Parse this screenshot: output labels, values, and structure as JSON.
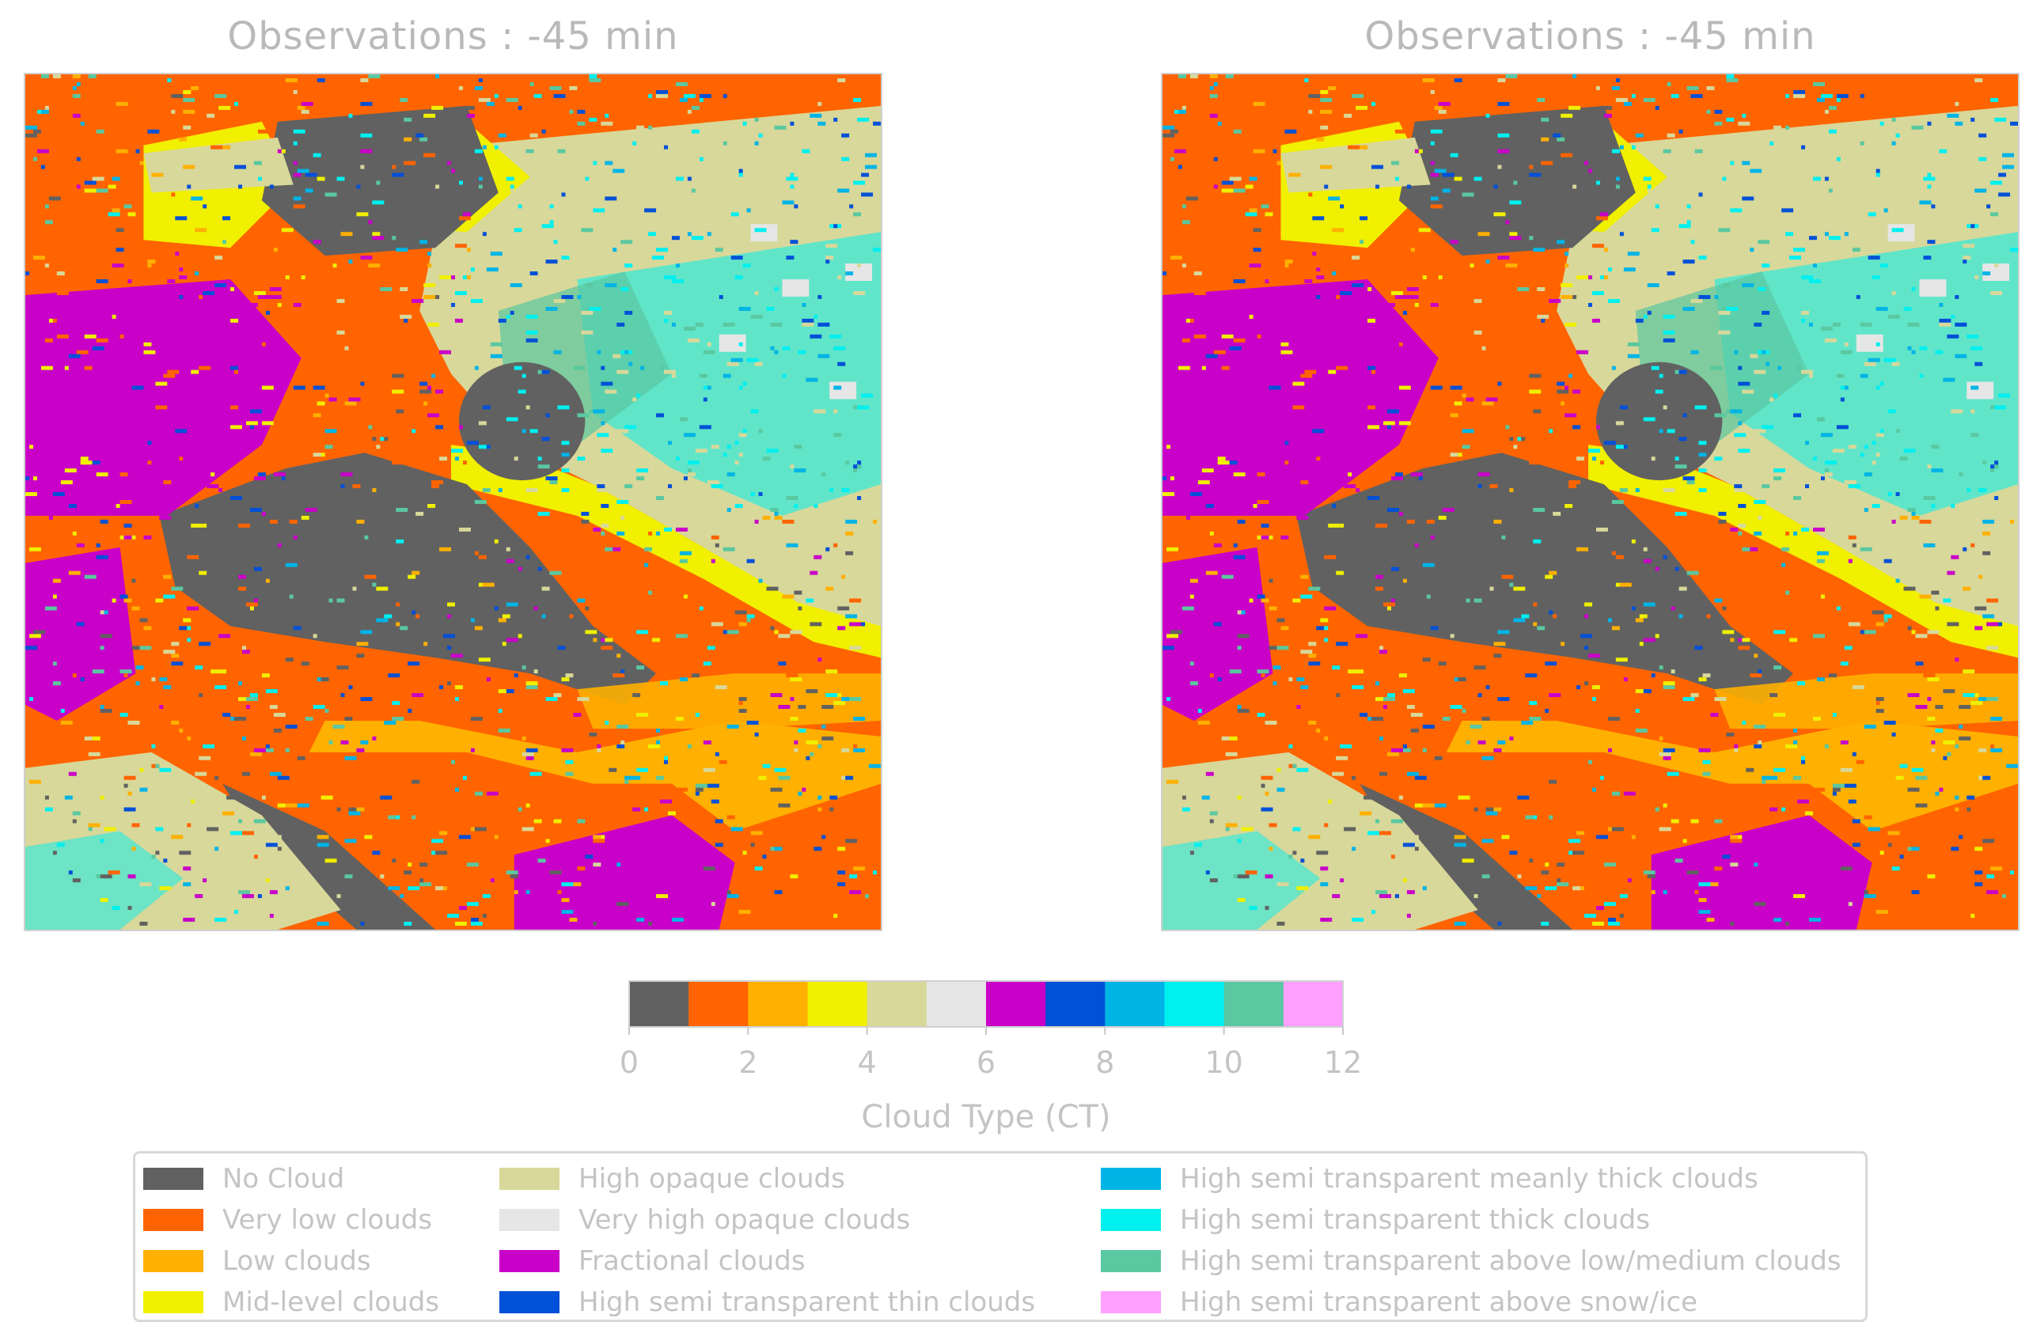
{
  "panels": [
    {
      "title": "Observations : -45 min"
    },
    {
      "title": "Observations : -45 min"
    }
  ],
  "chart_data": {
    "type": "heatmap",
    "colorbar": {
      "label": "Cloud Type (CT)",
      "range": [
        0,
        12
      ],
      "ticks": [
        "0",
        "2",
        "4",
        "6",
        "8",
        "10",
        "12"
      ]
    },
    "classes": [
      {
        "value": 0,
        "name": "No Cloud",
        "color": "#616161"
      },
      {
        "value": 1,
        "name": "Very low clouds",
        "color": "#ff6400"
      },
      {
        "value": 2,
        "name": "Low clouds",
        "color": "#ffb000"
      },
      {
        "value": 3,
        "name": "Mid-level clouds",
        "color": "#f0f000"
      },
      {
        "value": 4,
        "name": "High opaque clouds",
        "color": "#d8d89a"
      },
      {
        "value": 5,
        "name": "Very high opaque clouds",
        "color": "#e6e6e6"
      },
      {
        "value": 6,
        "name": "Fractional clouds",
        "color": "#c800c8"
      },
      {
        "value": 7,
        "name": "High semi transparent thin clouds",
        "color": "#0050d8"
      },
      {
        "value": 8,
        "name": "High semi transparent meanly thick clouds",
        "color": "#00b4e6"
      },
      {
        "value": 9,
        "name": "High semi transparent thick clouds",
        "color": "#00f0f0"
      },
      {
        "value": 10,
        "name": "High semi transparent above low/medium clouds",
        "color": "#5ac8a0"
      },
      {
        "value": 11,
        "name": "High semi transparent above snow/ice",
        "color": "#ffa0ff"
      }
    ]
  }
}
